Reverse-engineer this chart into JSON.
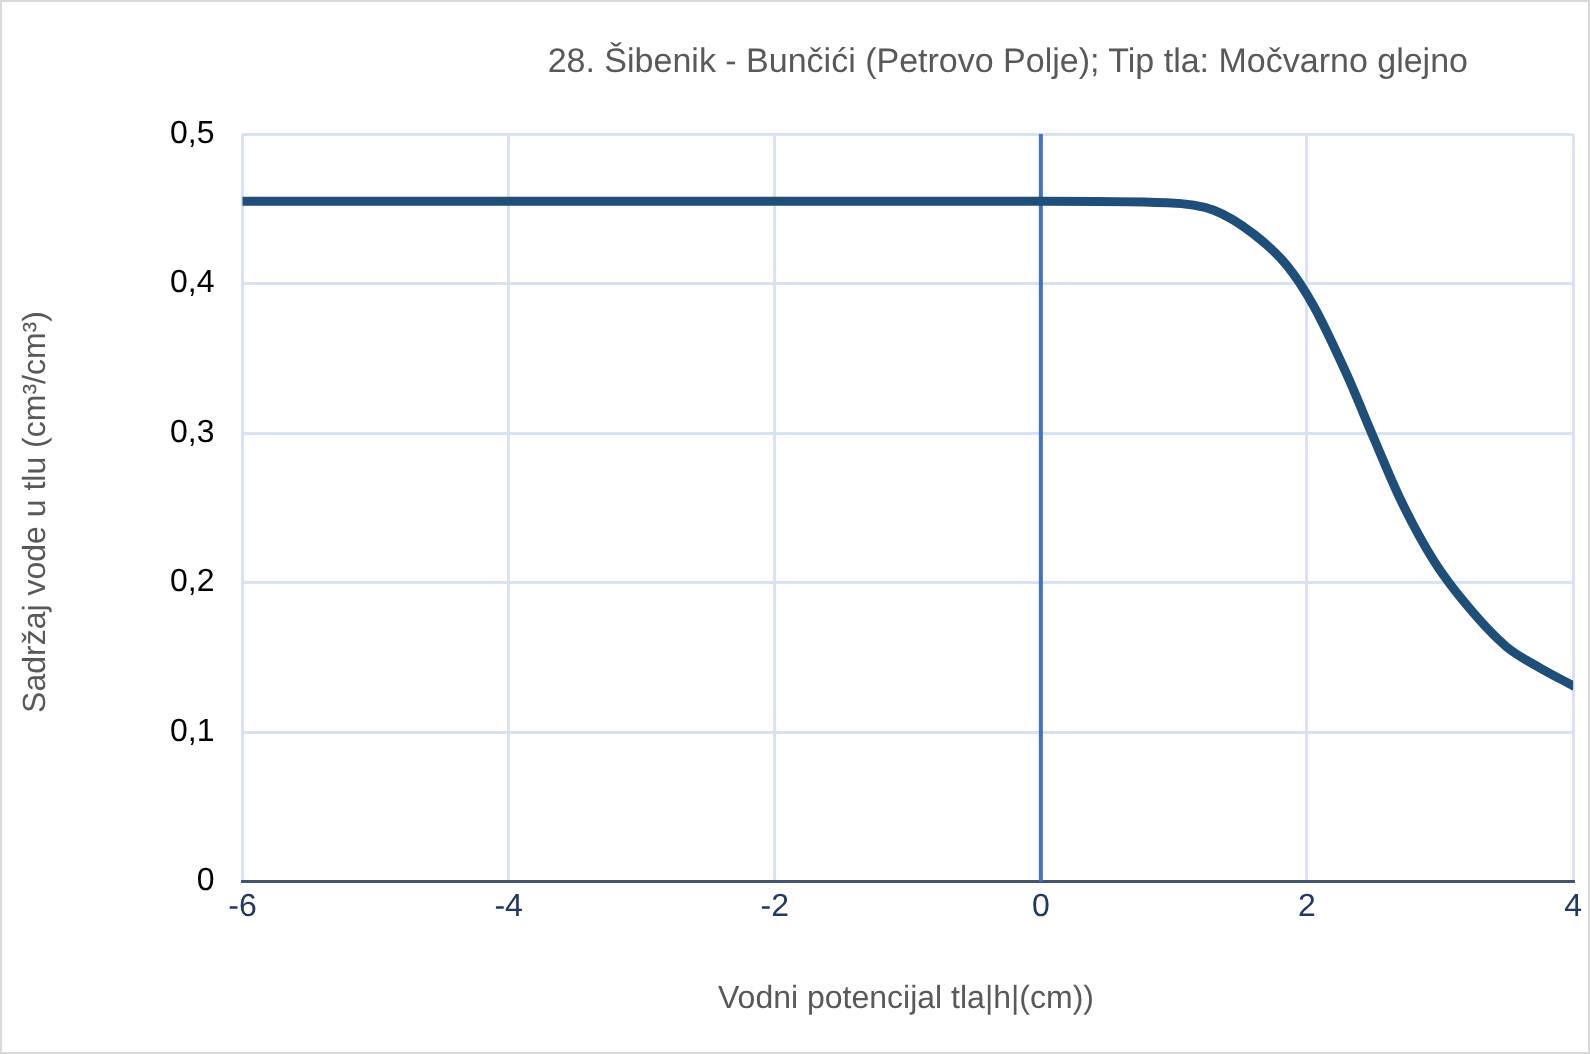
{
  "chart_data": {
    "type": "line",
    "title": "28. Šibenik - Bunčići (Petrovo Polje); Tip tla: Močvarno glejno",
    "xlabel": "Vodni potencijal tla|h|(cm))",
    "ylabel": "Sadržaj vode u tlu  (cm³/cm³)",
    "x": [
      -6,
      -4,
      -2,
      0,
      0.95,
      1.3,
      1.6,
      1.85,
      2.05,
      2.3,
      2.5,
      2.7,
      2.95,
      3.2,
      3.5,
      3.75,
      4.0
    ],
    "series": [
      {
        "color": "#1f4e79",
        "values": [
          0.455,
          0.455,
          0.455,
          0.455,
          0.454,
          0.449,
          0.433,
          0.412,
          0.385,
          0.339,
          0.297,
          0.256,
          0.215,
          0.185,
          0.157,
          0.143,
          0.131
        ]
      }
    ],
    "xlim": [
      -6,
      4
    ],
    "xticks": [
      -6,
      -4,
      -2,
      0,
      2,
      4
    ],
    "ylim": [
      0,
      0.5
    ],
    "yticks": [
      {
        "value": 0,
        "label": "0"
      },
      {
        "value": 0.1,
        "label": "0,1"
      },
      {
        "value": 0.2,
        "label": "0,2"
      },
      {
        "value": 0.3,
        "label": "0,3"
      },
      {
        "value": 0.4,
        "label": "0,4"
      },
      {
        "value": 0.5,
        "label": "0,5"
      }
    ],
    "ref_lines": [
      {
        "axis": "x",
        "value": 0,
        "color": "#4472c4"
      }
    ],
    "grid": true,
    "legend": false,
    "marker": "none",
    "line_style": "solid"
  }
}
